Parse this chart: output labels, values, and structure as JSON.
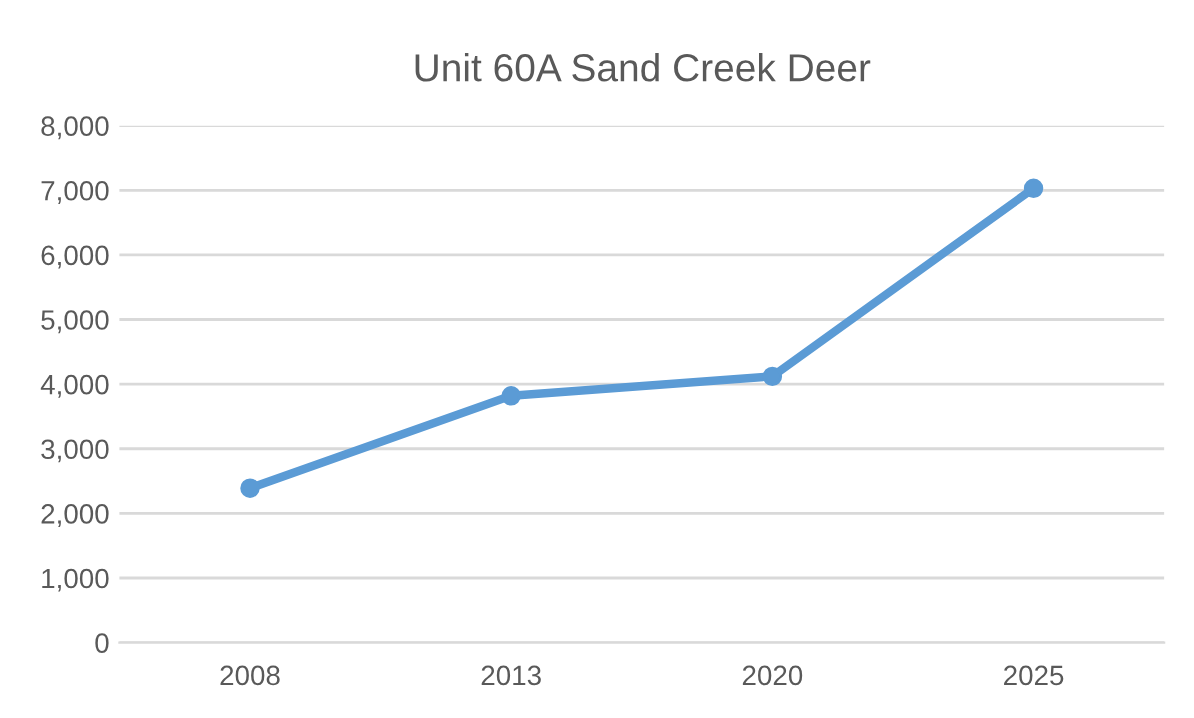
{
  "chart_data": {
    "type": "line",
    "title": "Unit 60A Sand Creek Deer",
    "categories": [
      "2008",
      "2013",
      "2020",
      "2025"
    ],
    "series": [
      {
        "color": "#5b9bd5",
        "values": [
          2390,
          3820,
          4120,
          7030
        ]
      }
    ],
    "ylim": [
      0,
      8000
    ],
    "yticks": [
      0,
      {
        "value": 1000,
        "label": "1,000"
      },
      {
        "value": 2000,
        "label": "2,000"
      },
      {
        "value": 3000,
        "label": "3,000"
      },
      {
        "value": 4000,
        "label": "4,000"
      },
      {
        "value": 5000,
        "label": "5,000"
      },
      {
        "value": 6000,
        "label": "6,000"
      },
      {
        "value": 7000,
        "label": "7,000"
      },
      {
        "value": 8000,
        "label": "8,000"
      }
    ],
    "grid": "y",
    "marker": "circle",
    "line_style": "solid"
  }
}
